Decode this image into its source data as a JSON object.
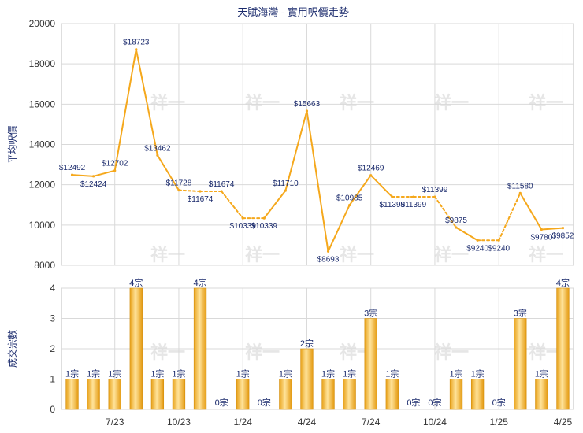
{
  "title": "天賦海灣 - 實用呎價走勢",
  "watermark": "祥一",
  "chart_data": [
    {
      "type": "line",
      "ylabel": "平均呎價",
      "ylim": [
        8000,
        20000
      ],
      "yticks": [
        8000,
        10000,
        12000,
        14000,
        16000,
        18000,
        20000
      ],
      "grid": true,
      "series_color": "#f5a81c",
      "points": [
        {
          "i": 0,
          "value": 12492,
          "label": "$12492",
          "observed": true
        },
        {
          "i": 1,
          "value": 12424,
          "label": "$12424",
          "observed": true
        },
        {
          "i": 2,
          "value": 12702,
          "label": "$12702",
          "observed": true
        },
        {
          "i": 3,
          "value": 18723,
          "label": "$18723",
          "observed": true
        },
        {
          "i": 4,
          "value": 13462,
          "label": "$13462",
          "observed": true
        },
        {
          "i": 5,
          "value": 11728,
          "label": "$11728",
          "observed": true
        },
        {
          "i": 6,
          "value": 11674,
          "label": "$11674",
          "observed": false
        },
        {
          "i": 7,
          "value": 11674,
          "label": "$11674",
          "observed": true
        },
        {
          "i": 8,
          "value": 10339,
          "label": "$10339",
          "observed": false
        },
        {
          "i": 9,
          "value": 10339,
          "label": "$10339",
          "observed": true
        },
        {
          "i": 10,
          "value": 11710,
          "label": "$11710",
          "observed": true
        },
        {
          "i": 11,
          "value": 15663,
          "label": "$15663",
          "observed": true
        },
        {
          "i": 12,
          "value": 8693,
          "label": "$8693",
          "observed": true
        },
        {
          "i": 13,
          "value": 10985,
          "label": "$10985",
          "observed": true
        },
        {
          "i": 14,
          "value": 12469,
          "label": "$12469",
          "observed": true
        },
        {
          "i": 15,
          "value": 11399,
          "label": "$11399",
          "observed": true
        },
        {
          "i": 16,
          "value": 11399,
          "label": "$11399",
          "observed": false
        },
        {
          "i": 17,
          "value": 11399,
          "label": "$11399",
          "observed": false
        },
        {
          "i": 18,
          "value": 9875,
          "label": "$9875",
          "observed": true
        },
        {
          "i": 19,
          "value": 9240,
          "label": "$9240",
          "observed": true
        },
        {
          "i": 20,
          "value": 9240,
          "label": "$9240",
          "observed": false
        },
        {
          "i": 21,
          "value": 11580,
          "label": "$11580",
          "observed": true
        },
        {
          "i": 22,
          "value": 9780,
          "label": "$9780",
          "observed": true
        },
        {
          "i": 23,
          "value": 9852,
          "label": "$9852",
          "observed": true
        }
      ]
    },
    {
      "type": "bar",
      "ylabel": "成交宗數",
      "ylim": [
        0,
        4
      ],
      "yticks": [
        0,
        1,
        2,
        3,
        4
      ],
      "grid": true,
      "values": [
        1,
        1,
        1,
        4,
        1,
        1,
        4,
        0,
        1,
        0,
        1,
        2,
        1,
        1,
        3,
        1,
        0,
        0,
        1,
        1,
        0,
        3,
        1,
        4
      ],
      "labels": [
        "1宗",
        "1宗",
        "1宗",
        "4宗",
        "1宗",
        "1宗",
        "4宗",
        "0宗",
        "1宗",
        "0宗",
        "1宗",
        "2宗",
        "1宗",
        "1宗",
        "3宗",
        "1宗",
        "0宗",
        "0宗",
        "1宗",
        "1宗",
        "0宗",
        "3宗",
        "1宗",
        "4宗"
      ],
      "x_ticks": [
        {
          "i": 2,
          "label": "7/23"
        },
        {
          "i": 5,
          "label": "10/23"
        },
        {
          "i": 8,
          "label": "1/24"
        },
        {
          "i": 11,
          "label": "4/24"
        },
        {
          "i": 14,
          "label": "7/24"
        },
        {
          "i": 17,
          "label": "10/24"
        },
        {
          "i": 20,
          "label": "1/25"
        },
        {
          "i": 23,
          "label": "4/25"
        }
      ]
    }
  ]
}
